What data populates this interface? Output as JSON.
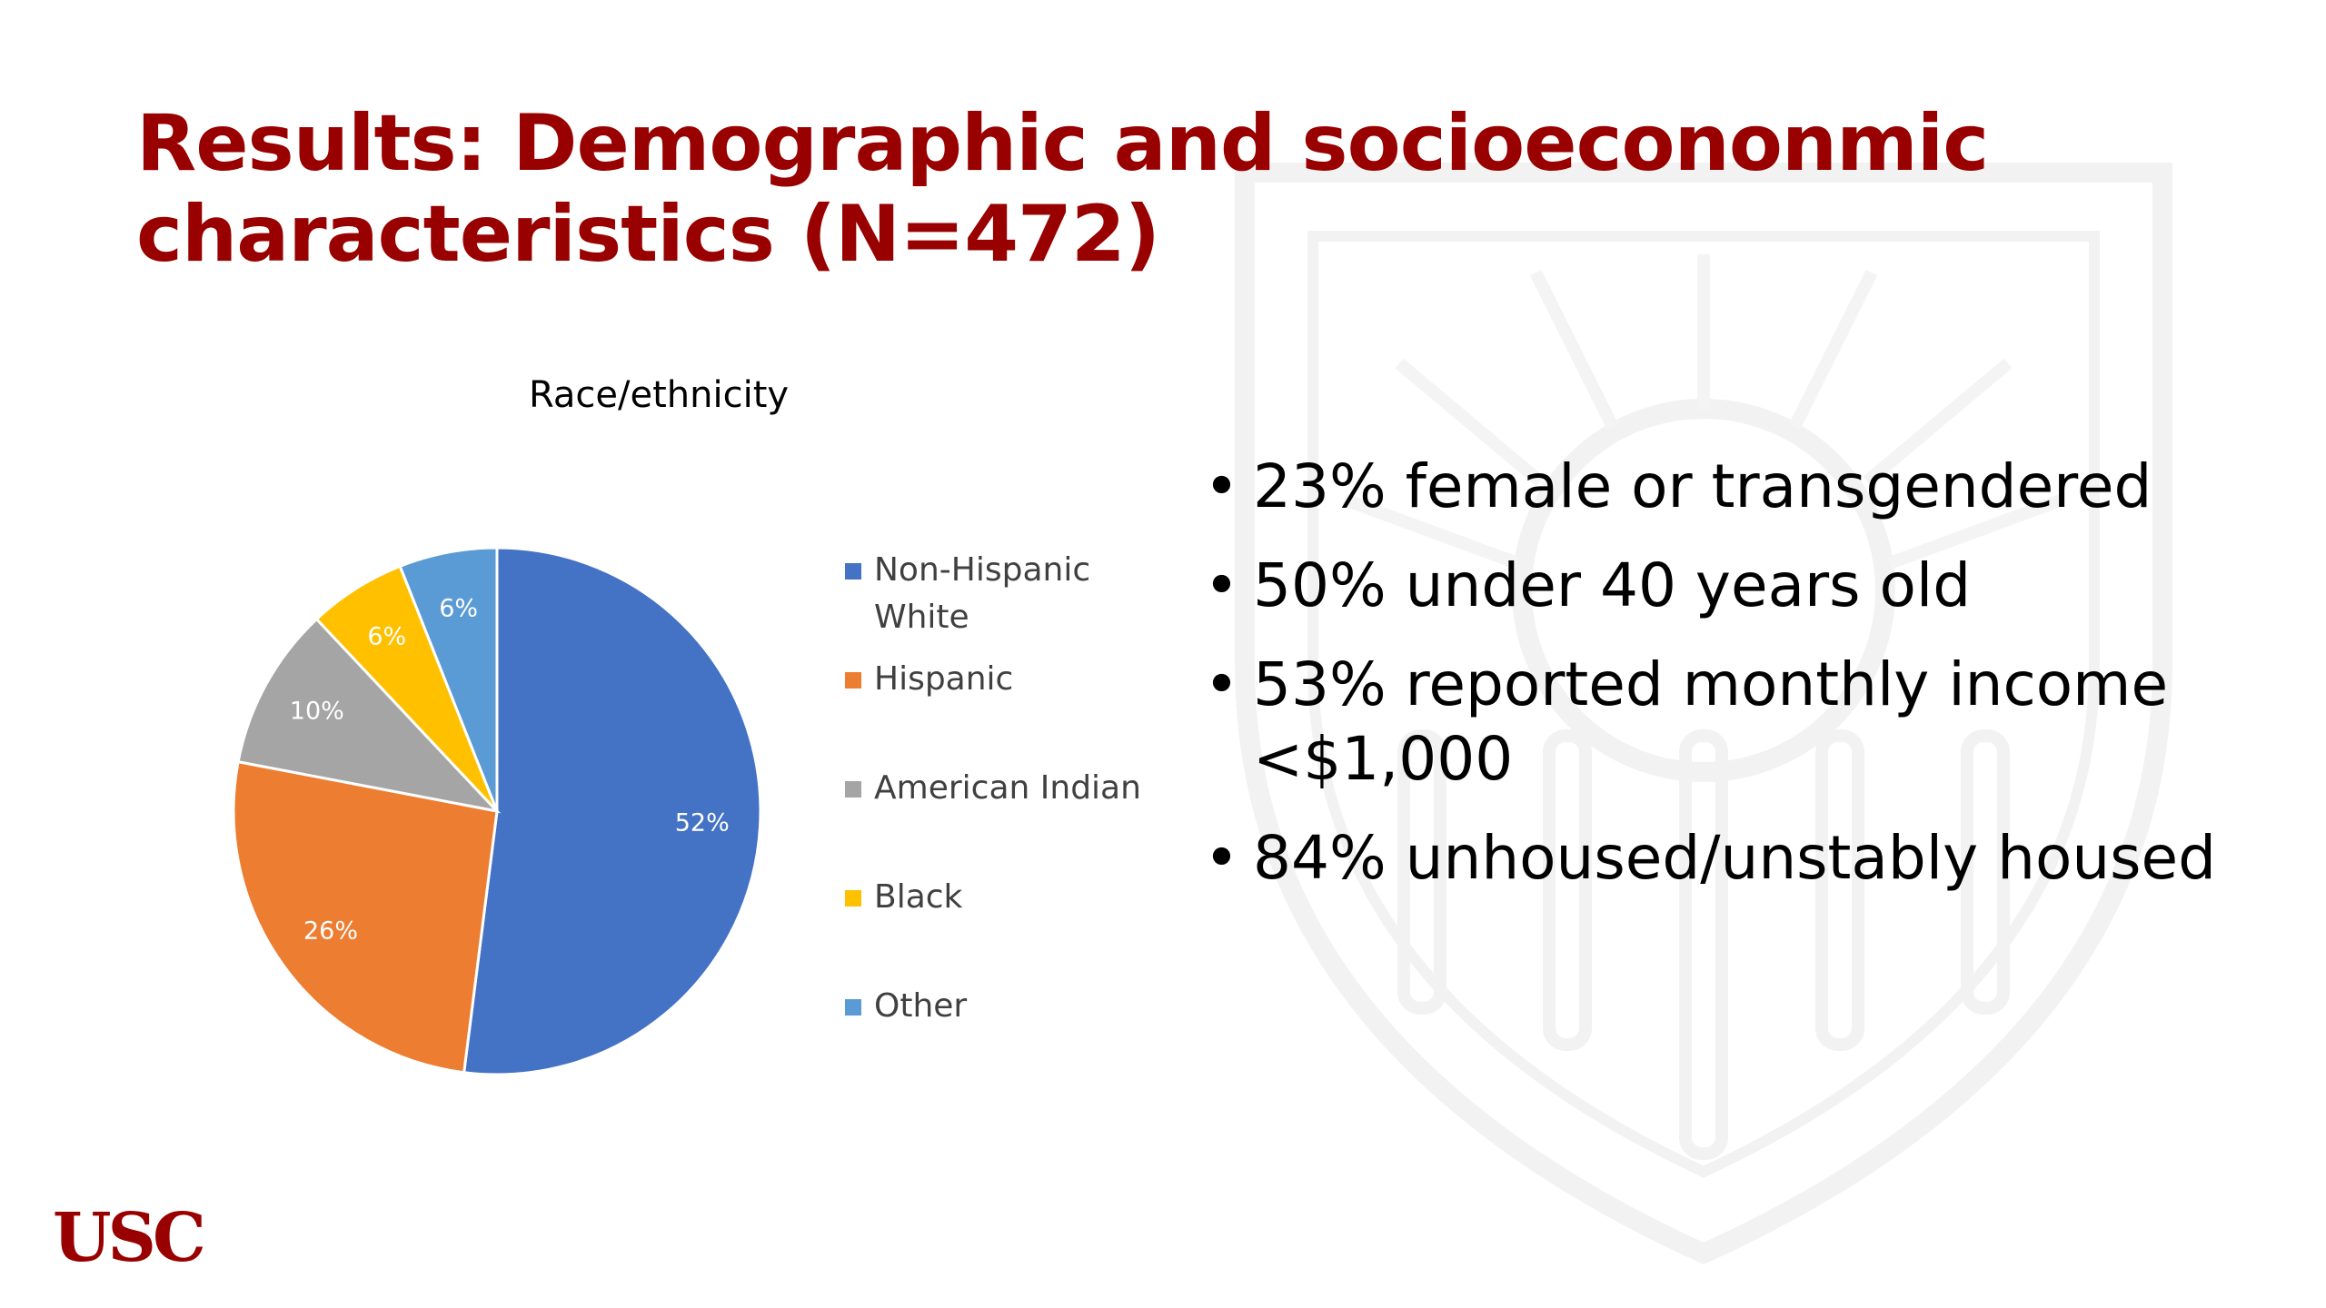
{
  "slide": {
    "title_lines": [
      "Results: Demographic and socioecononmic",
      "characteristics (N=472)"
    ],
    "bullets": [
      "23% female or transgendered",
      "50% under 40 years old",
      "53% reported monthly income <$1,000",
      "84% unhoused/unstably housed"
    ],
    "logo_text": "USC"
  },
  "chart_data": {
    "type": "pie",
    "title": "Race/ethnicity",
    "categories": [
      "Non-Hispanic White",
      "Hispanic",
      "American Indian",
      "Black",
      "Other"
    ],
    "values": [
      52,
      26,
      10,
      6,
      6
    ],
    "data_labels": [
      "52%",
      "26%",
      "10%",
      "6%",
      "6%"
    ],
    "colors": [
      "#4472C4",
      "#ED7D31",
      "#A5A5A5",
      "#FFC000",
      "#5B9BD5"
    ],
    "legend_position": "right"
  }
}
